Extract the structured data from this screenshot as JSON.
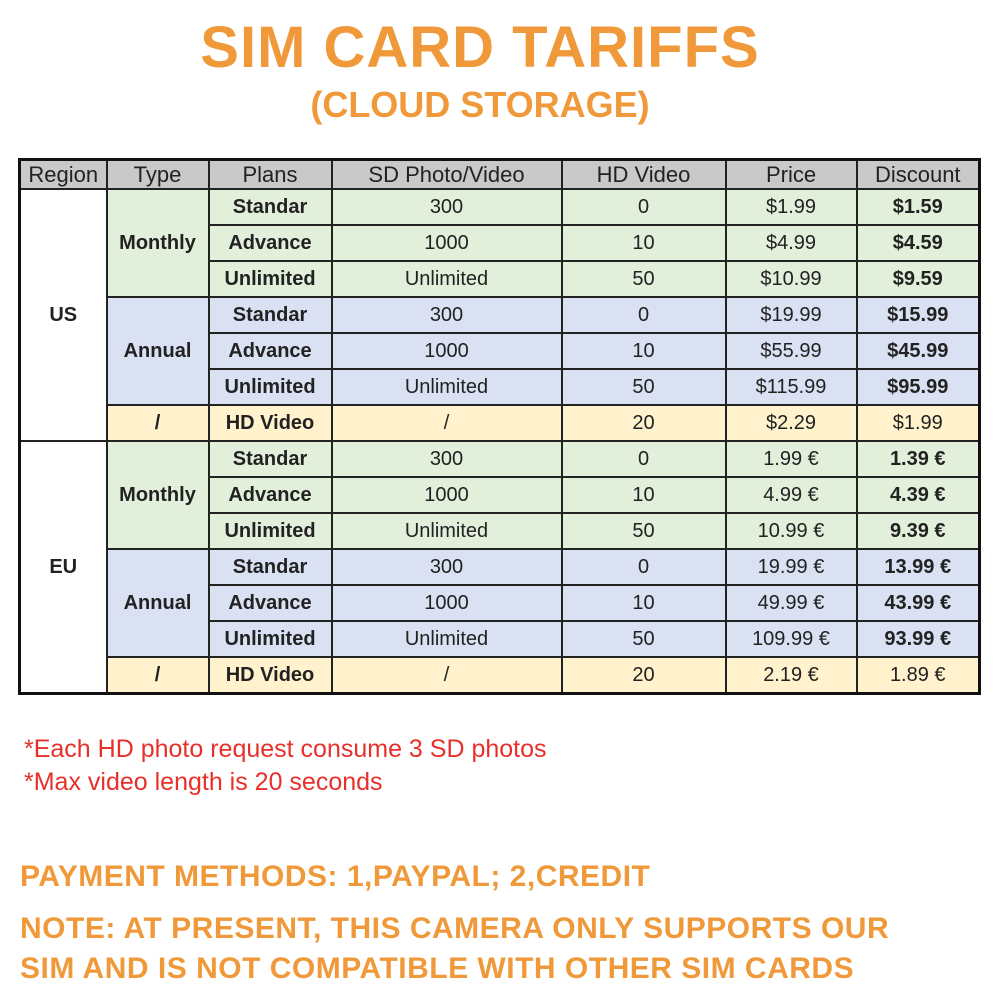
{
  "title": "SIM CARD TARIFFS",
  "subtitle": "(CLOUD STORAGE)",
  "colors": {
    "title": "#f0993a",
    "note": "#e8302a",
    "header": "#c9c9c9",
    "monthly": "#e2efda",
    "annual": "#d9e1f2",
    "hd_video": "#fff2cc"
  },
  "headers": [
    "Region",
    "Type",
    "Plans",
    "SD Photo/Video",
    "HD Video",
    "Price",
    "Discount"
  ],
  "regions": [
    {
      "region": "US",
      "groups": [
        {
          "type": "Monthly",
          "style": "g",
          "rows": [
            {
              "plan": "Standar",
              "sd": "300",
              "hd": "0",
              "price": "$1.99",
              "discount": "$1.59"
            },
            {
              "plan": "Advance",
              "sd": "1000",
              "hd": "10",
              "price": "$4.99",
              "discount": "$4.59"
            },
            {
              "plan": "Unlimited",
              "sd": "Unlimited",
              "hd": "50",
              "price": "$10.99",
              "discount": "$9.59"
            }
          ]
        },
        {
          "type": "Annual",
          "style": "b",
          "rows": [
            {
              "plan": "Standar",
              "sd": "300",
              "hd": "0",
              "price": "$19.99",
              "discount": "$15.99"
            },
            {
              "plan": "Advance",
              "sd": "1000",
              "hd": "10",
              "price": "$55.99",
              "discount": "$45.99"
            },
            {
              "plan": "Unlimited",
              "sd": "Unlimited",
              "hd": "50",
              "price": "$115.99",
              "discount": "$95.99"
            }
          ]
        },
        {
          "type": "/",
          "style": "y",
          "rows": [
            {
              "plan": "HD Video",
              "sd": "/",
              "hd": "20",
              "price": "$2.29",
              "discount": "$1.99"
            }
          ]
        }
      ]
    },
    {
      "region": "EU",
      "groups": [
        {
          "type": "Monthly",
          "style": "g",
          "rows": [
            {
              "plan": "Standar",
              "sd": "300",
              "hd": "0",
              "price": "1.99 €",
              "discount": "1.39 €"
            },
            {
              "plan": "Advance",
              "sd": "1000",
              "hd": "10",
              "price": "4.99 €",
              "discount": "4.39 €"
            },
            {
              "plan": "Unlimited",
              "sd": "Unlimited",
              "hd": "50",
              "price": "10.99 €",
              "discount": "9.39 €"
            }
          ]
        },
        {
          "type": "Annual",
          "style": "b",
          "rows": [
            {
              "plan": "Standar",
              "sd": "300",
              "hd": "0",
              "price": "19.99 €",
              "discount": "13.99 €"
            },
            {
              "plan": "Advance",
              "sd": "1000",
              "hd": "10",
              "price": "49.99 €",
              "discount": "43.99 €"
            },
            {
              "plan": "Unlimited",
              "sd": "Unlimited",
              "hd": "50",
              "price": "109.99 €",
              "discount": "93.99 €"
            }
          ]
        },
        {
          "type": "/",
          "style": "y",
          "rows": [
            {
              "plan": "HD Video",
              "sd": "/",
              "hd": "20",
              "price": "2.19 €",
              "discount": "1.89 €"
            }
          ]
        }
      ]
    }
  ],
  "notes": [
    "*Each HD photo request consume 3 SD photos",
    "*Max video length is 20 seconds"
  ],
  "payment": "PAYMENT METHODS: 1,PAYPAL; 2,CREDIT",
  "note_lines": [
    "NOTE: AT PRESENT, THIS CAMERA ONLY SUPPORTS OUR",
    "SIM AND IS NOT COMPATIBLE WITH OTHER SIM CARDS"
  ]
}
